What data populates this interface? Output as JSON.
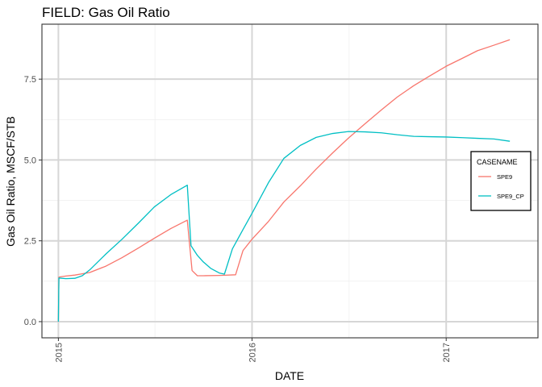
{
  "chart_data": {
    "type": "line",
    "title": "FIELD:  Gas Oil Ratio",
    "xlabel": "DATE",
    "ylabel": "Gas Oil Ratio, MSCF/STB",
    "xlim": [
      "2014-12-01",
      "2017-06-23"
    ],
    "ylim": [
      -0.5,
      9.2
    ],
    "x_ticks": [
      {
        "date": "2015-01-01",
        "label": "2015"
      },
      {
        "date": "2016-01-01",
        "label": "2016"
      },
      {
        "date": "2017-01-01",
        "label": "2017"
      }
    ],
    "y_ticks": [
      {
        "value": 0,
        "label": "0.0"
      },
      {
        "value": 2.5,
        "label": "2.5"
      },
      {
        "value": 5,
        "label": "5.0"
      },
      {
        "value": 7.5,
        "label": "7.5"
      }
    ],
    "grid": true,
    "legend": {
      "title": "CASENAME",
      "placement": "right"
    },
    "series": [
      {
        "name": "SPE9",
        "color": "#F8766D",
        "points": [
          [
            "2015-01-01",
            0.0
          ],
          [
            "2015-01-02",
            1.38
          ],
          [
            "2015-01-15",
            1.41
          ],
          [
            "2015-02-01",
            1.44
          ],
          [
            "2015-03-01",
            1.52
          ],
          [
            "2015-04-01",
            1.72
          ],
          [
            "2015-05-01",
            1.98
          ],
          [
            "2015-06-01",
            2.28
          ],
          [
            "2015-07-01",
            2.58
          ],
          [
            "2015-08-01",
            2.88
          ],
          [
            "2015-09-01",
            3.14
          ],
          [
            "2015-09-10",
            1.58
          ],
          [
            "2015-09-20",
            1.42
          ],
          [
            "2015-10-01",
            1.42
          ],
          [
            "2015-11-01",
            1.43
          ],
          [
            "2015-12-01",
            1.45
          ],
          [
            "2015-12-15",
            2.2
          ],
          [
            "2016-01-01",
            2.55
          ],
          [
            "2016-02-01",
            3.1
          ],
          [
            "2016-03-01",
            3.7
          ],
          [
            "2016-04-01",
            4.2
          ],
          [
            "2016-05-01",
            4.72
          ],
          [
            "2016-06-01",
            5.22
          ],
          [
            "2016-07-01",
            5.68
          ],
          [
            "2016-08-01",
            6.12
          ],
          [
            "2016-09-01",
            6.55
          ],
          [
            "2016-10-01",
            6.95
          ],
          [
            "2016-11-01",
            7.3
          ],
          [
            "2016-12-01",
            7.6
          ],
          [
            "2017-01-01",
            7.9
          ],
          [
            "2017-02-01",
            8.15
          ],
          [
            "2017-03-01",
            8.38
          ],
          [
            "2017-04-01",
            8.55
          ],
          [
            "2017-05-01",
            8.72
          ]
        ]
      },
      {
        "name": "SPE9_CP",
        "color": "#00BFC4",
        "points": [
          [
            "2015-01-01",
            0.0
          ],
          [
            "2015-01-02",
            1.35
          ],
          [
            "2015-01-15",
            1.33
          ],
          [
            "2015-02-01",
            1.34
          ],
          [
            "2015-02-15",
            1.42
          ],
          [
            "2015-03-01",
            1.6
          ],
          [
            "2015-04-01",
            2.1
          ],
          [
            "2015-05-01",
            2.55
          ],
          [
            "2015-06-01",
            3.05
          ],
          [
            "2015-07-01",
            3.55
          ],
          [
            "2015-08-01",
            3.93
          ],
          [
            "2015-09-01",
            4.22
          ],
          [
            "2015-09-08",
            2.35
          ],
          [
            "2015-09-20",
            2.05
          ],
          [
            "2015-10-01",
            1.85
          ],
          [
            "2015-10-15",
            1.65
          ],
          [
            "2015-11-01",
            1.5
          ],
          [
            "2015-11-10",
            1.47
          ],
          [
            "2015-11-25",
            2.25
          ],
          [
            "2015-12-15",
            2.85
          ],
          [
            "2016-01-01",
            3.35
          ],
          [
            "2016-02-01",
            4.3
          ],
          [
            "2016-03-01",
            5.05
          ],
          [
            "2016-04-01",
            5.45
          ],
          [
            "2016-05-01",
            5.7
          ],
          [
            "2016-06-01",
            5.82
          ],
          [
            "2016-07-01",
            5.88
          ],
          [
            "2016-08-01",
            5.87
          ],
          [
            "2016-09-01",
            5.84
          ],
          [
            "2016-10-01",
            5.78
          ],
          [
            "2016-11-01",
            5.73
          ],
          [
            "2016-12-01",
            5.72
          ],
          [
            "2017-01-01",
            5.71
          ],
          [
            "2017-02-01",
            5.69
          ],
          [
            "2017-03-01",
            5.67
          ],
          [
            "2017-04-01",
            5.65
          ],
          [
            "2017-05-01",
            5.58
          ]
        ]
      }
    ]
  }
}
